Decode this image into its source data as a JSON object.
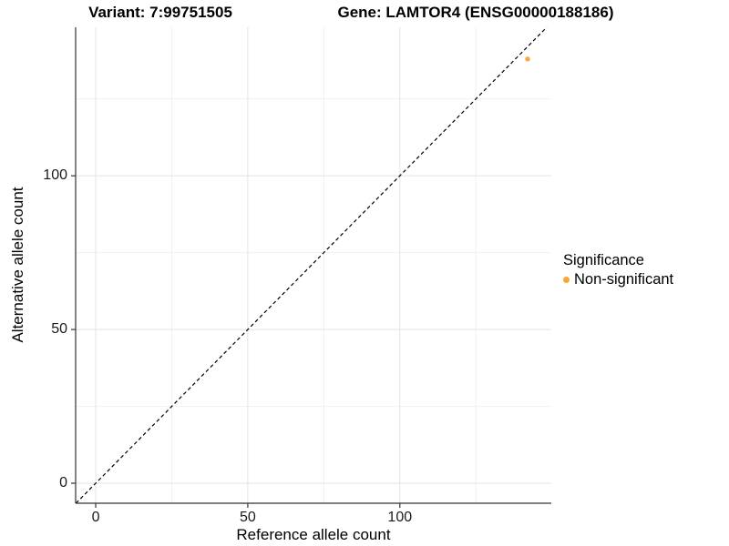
{
  "title": {
    "left": "Variant: 7:99751505",
    "right": "Gene: LAMTOR4 (ENSG00000188186)"
  },
  "chart_data": {
    "type": "scatter",
    "title_left": "Variant: 7:99751505",
    "title_right": "Gene: LAMTOR4 (ENSG00000188186)",
    "xlabel": "Reference allele count",
    "ylabel": "Alternative allele count",
    "xlim": [
      -6.6,
      149.8
    ],
    "ylim": [
      -6.5,
      148.3
    ],
    "x_major_ticks": [
      0,
      50,
      100
    ],
    "y_major_ticks": [
      0,
      50,
      100
    ],
    "x_minor_ticks": [
      25,
      75,
      125
    ],
    "y_minor_ticks": [
      25,
      75,
      125
    ],
    "grid": true,
    "identity_line": {
      "style": "dashed",
      "slope": 1,
      "intercept": 0,
      "color": "#000000"
    },
    "series": [
      {
        "name": "Non-significant",
        "color": "#FAA43A",
        "points": [
          {
            "x": 142,
            "y": 138
          }
        ]
      }
    ],
    "legend": {
      "title": "Significance",
      "position": "right",
      "items": [
        {
          "label": "Non-significant",
          "color": "#FAA43A"
        }
      ]
    },
    "colors": {
      "grid_major": "#e3e3e3",
      "grid_minor": "#f1f1f1",
      "axis_line": "#333333",
      "tick_mark": "#333333",
      "point": "#FAA43A"
    }
  }
}
